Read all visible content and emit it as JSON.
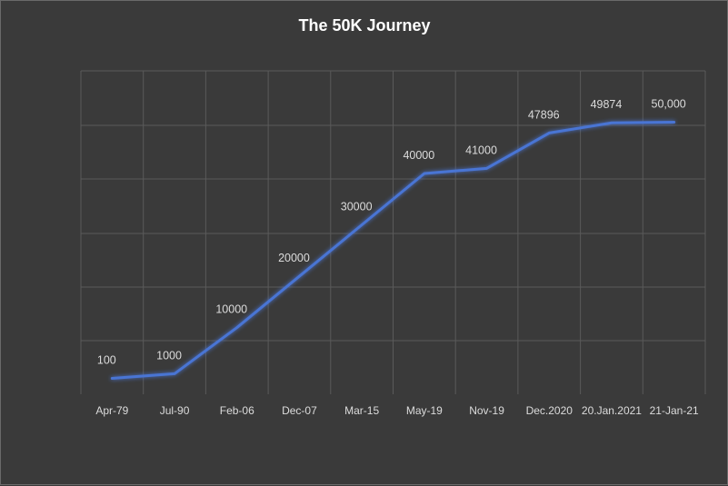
{
  "chart_data": {
    "type": "line",
    "title": "The 50K Journey",
    "categories": [
      "Apr-79",
      "Jul-90",
      "Feb-06",
      "Dec-07",
      "Mar-15",
      "May-19",
      "Nov-19",
      "Dec.2020",
      "20.Jan.2021",
      "21-Jan-21"
    ],
    "series": [
      {
        "values": [
          100,
          1000,
          10000,
          20000,
          30000,
          40000,
          41000,
          47896,
          49874,
          50000
        ],
        "data_labels": [
          "100",
          "1000",
          "10000",
          "20000",
          "30000",
          "40000",
          "41000",
          "47896",
          "49874",
          "50,000"
        ]
      }
    ],
    "xlabel": "",
    "ylabel": "",
    "ylim": [
      -3000,
      60000
    ],
    "y_tick_labels_shown": false,
    "grid": true,
    "legend": "none"
  },
  "colors": {
    "background": "#3a3a3a",
    "line": "#4a74d4",
    "grid": "#5a5a5a",
    "text": "#dcdcdc",
    "title": "#ffffff"
  }
}
